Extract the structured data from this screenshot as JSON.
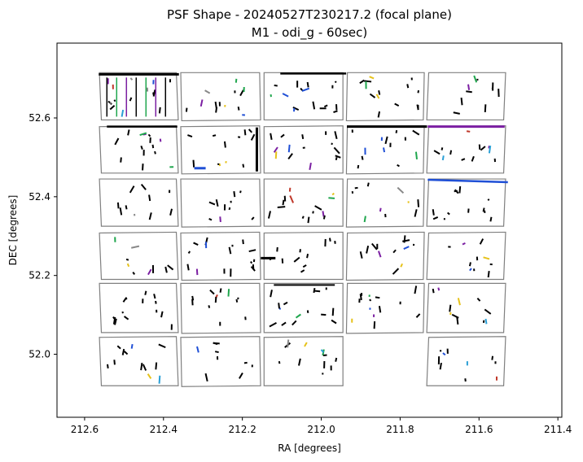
{
  "chart_data": {
    "type": "scatter",
    "title_line1": "PSF Shape - 20240527T230217.2 (focal plane)",
    "title_line2": "M1 - odi_g - 60sec)",
    "xlabel": "RA [degrees]",
    "ylabel": "DEC [degrees]",
    "xlim": [
      212.67,
      211.39
    ],
    "ylim": [
      51.84,
      52.79
    ],
    "x_inverted": true,
    "grid": false,
    "x_ticks": [
      "212.6",
      "212.4",
      "212.2",
      "212.0",
      "211.8",
      "211.6",
      "211.4"
    ],
    "x_tick_values": [
      212.6,
      212.4,
      212.2,
      212.0,
      211.8,
      211.6,
      211.4
    ],
    "y_ticks": [
      "52.6",
      "52.4",
      "52.2",
      "52.0"
    ],
    "y_tick_values": [
      52.6,
      52.4,
      52.2,
      52.0
    ],
    "ccd_outline_color": "#808080",
    "ccd_grid": {
      "columns_ra": [
        [
          212.56,
          212.365
        ],
        [
          212.355,
          212.155
        ],
        [
          212.145,
          211.945
        ],
        [
          211.935,
          211.74
        ],
        [
          211.73,
          211.535
        ]
      ],
      "rows_dec": [
        [
          52.595,
          52.715
        ],
        [
          52.46,
          52.58
        ],
        [
          52.325,
          52.445
        ],
        [
          52.19,
          52.31
        ],
        [
          52.055,
          52.18
        ],
        [
          51.92,
          52.045
        ]
      ],
      "missing": [
        [
          5,
          3
        ]
      ]
    },
    "psf_colors": [
      "#000000",
      "#7b1fa2",
      "#1fa64d",
      "#1f4fd6",
      "#2a9fd6",
      "#e6c21a",
      "#c0392b",
      "#888888"
    ]
  }
}
